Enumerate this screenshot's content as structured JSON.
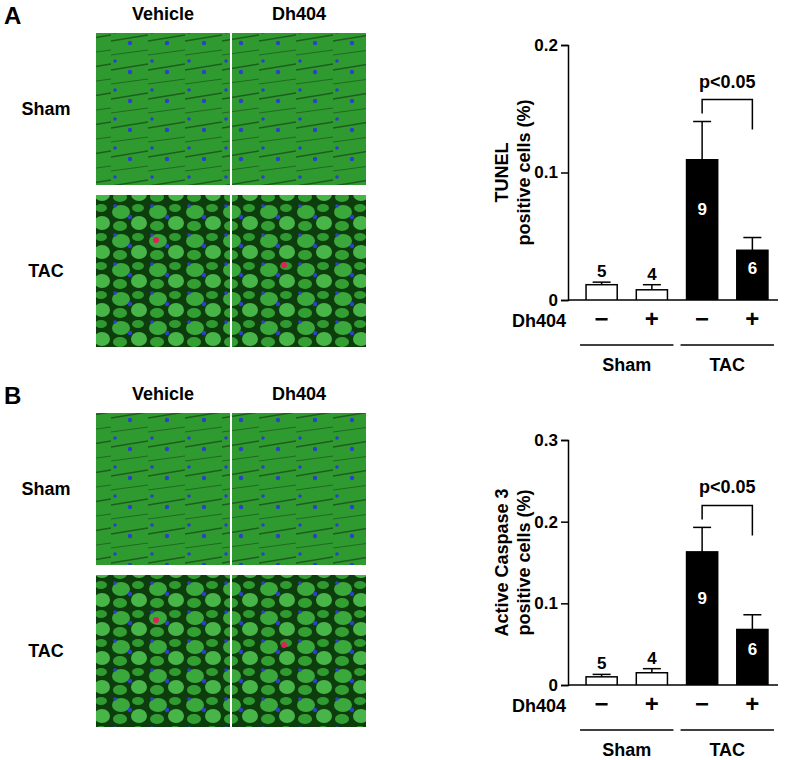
{
  "panels": [
    {
      "label": "A",
      "image_columns": [
        "Vehicle",
        "Dh404"
      ],
      "image_rows": [
        "Sham",
        "TAC"
      ]
    },
    {
      "label": "B",
      "image_columns": [
        "Vehicle",
        "Dh404"
      ],
      "image_rows": [
        "Sham",
        "TAC"
      ]
    }
  ],
  "chart_data": [
    {
      "type": "bar",
      "y_label": [
        "TUNEL",
        "positive cells (%)"
      ],
      "x_label": "Dh404",
      "categories": [
        "−",
        "+",
        "−",
        "+"
      ],
      "groups": [
        {
          "name": "Sham",
          "size": 2
        },
        {
          "name": "TAC",
          "size": 2
        }
      ],
      "values": [
        0.012,
        0.008,
        0.11,
        0.039
      ],
      "errors": [
        0.002,
        0.004,
        0.03,
        0.01
      ],
      "n": [
        5,
        4,
        9,
        6
      ],
      "colors": [
        "#ffffff",
        "#ffffff",
        "#000000",
        "#000000"
      ],
      "ylim": [
        0,
        0.2
      ],
      "yticks": [
        0,
        0.1,
        0.2
      ],
      "annotations": [
        {
          "text": "p<0.05",
          "group": "TAC"
        }
      ]
    },
    {
      "type": "bar",
      "y_label": [
        "Active Caspase 3",
        "positive cells (%)"
      ],
      "x_label": "Dh404",
      "categories": [
        "−",
        "+",
        "−",
        "+"
      ],
      "groups": [
        {
          "name": "Sham",
          "size": 2
        },
        {
          "name": "TAC",
          "size": 2
        }
      ],
      "values": [
        0.01,
        0.015,
        0.163,
        0.068
      ],
      "errors": [
        0.003,
        0.005,
        0.03,
        0.018
      ],
      "n": [
        5,
        4,
        9,
        6
      ],
      "colors": [
        "#ffffff",
        "#ffffff",
        "#000000",
        "#000000"
      ],
      "ylim": [
        0,
        0.3
      ],
      "yticks": [
        0,
        0.1,
        0.2,
        0.3
      ],
      "annotations": [
        {
          "text": "p<0.05",
          "group": "TAC"
        }
      ]
    }
  ]
}
